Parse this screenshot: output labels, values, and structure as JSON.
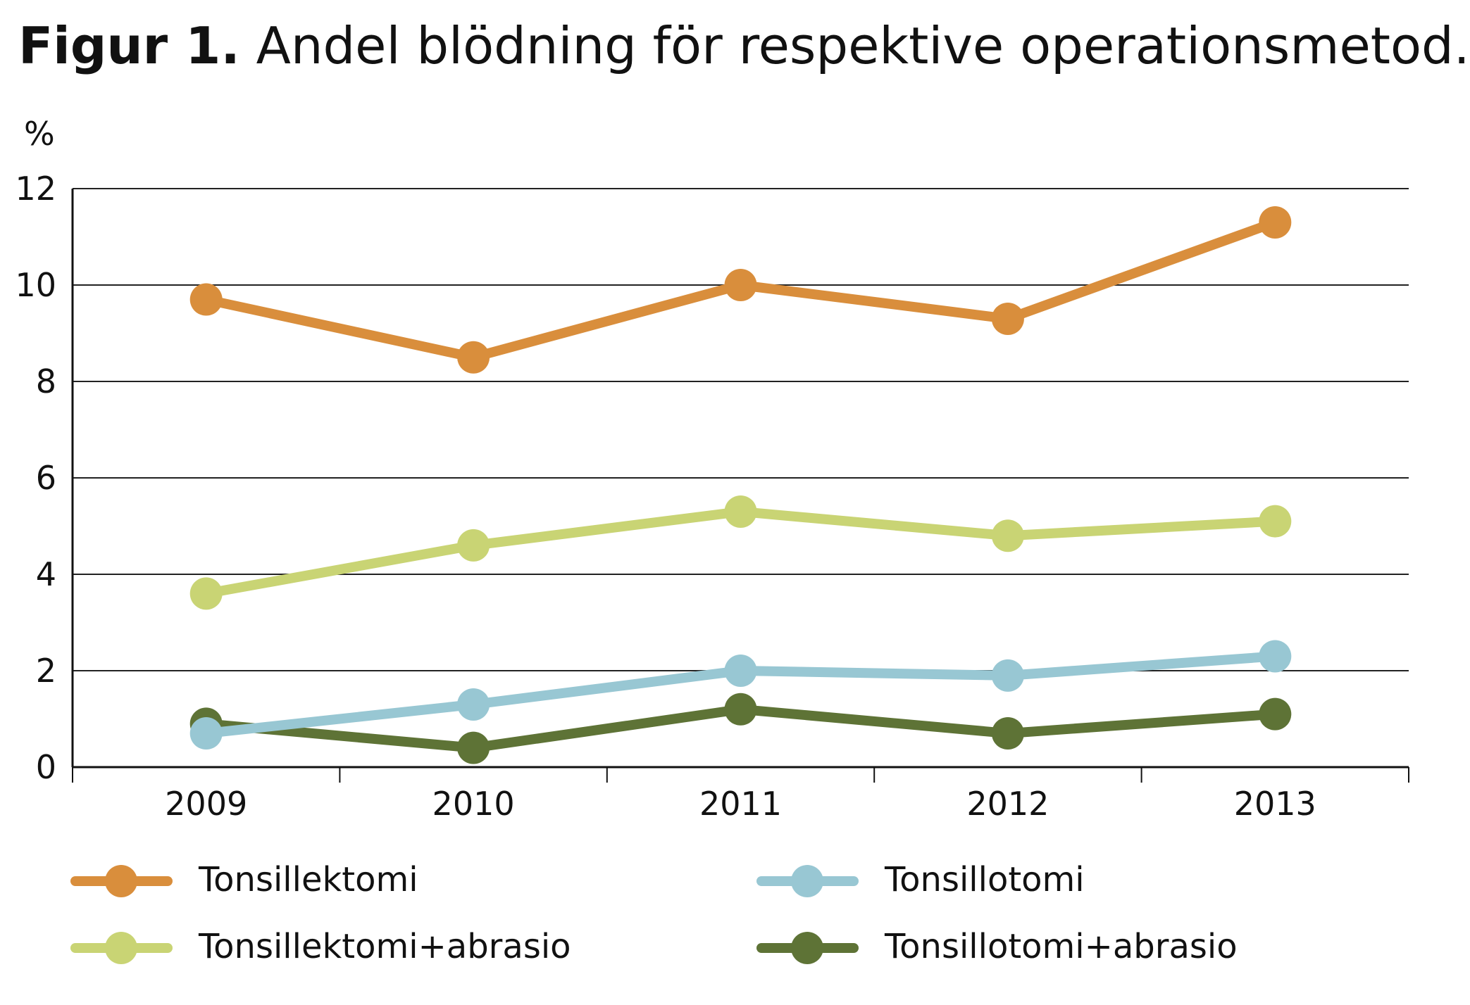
{
  "title": {
    "figure_number": "Figur 1.",
    "text": "Andel blödning för respektive operationsmetod."
  },
  "y_unit": "%",
  "chart_data": {
    "type": "line",
    "title": "Figur 1. Andel blödning för respektive operationsmetod.",
    "ylabel": "%",
    "xlabel": "",
    "categories": [
      "2009",
      "2010",
      "2011",
      "2012",
      "2013"
    ],
    "ylim": [
      0,
      12
    ],
    "yticks": [
      "0",
      "2",
      "4",
      "6",
      "8",
      "10",
      "12"
    ],
    "grid": true,
    "legend_position": "bottom",
    "series": [
      {
        "name": "Tonsillektomi",
        "color": "#D98E3C",
        "values": [
          9.7,
          8.5,
          10.0,
          9.3,
          11.3
        ]
      },
      {
        "name": "Tonsillotomi",
        "color": "#98C7D3",
        "values": [
          0.7,
          1.3,
          2.0,
          1.9,
          2.3
        ]
      },
      {
        "name": "Tonsillektomi+abrasio",
        "color": "#C9D474",
        "values": [
          3.6,
          4.6,
          5.3,
          4.8,
          5.1
        ]
      },
      {
        "name": "Tonsillotomi+abrasio",
        "color": "#5E7336",
        "values": [
          0.9,
          0.4,
          1.2,
          0.7,
          1.1
        ]
      }
    ]
  }
}
